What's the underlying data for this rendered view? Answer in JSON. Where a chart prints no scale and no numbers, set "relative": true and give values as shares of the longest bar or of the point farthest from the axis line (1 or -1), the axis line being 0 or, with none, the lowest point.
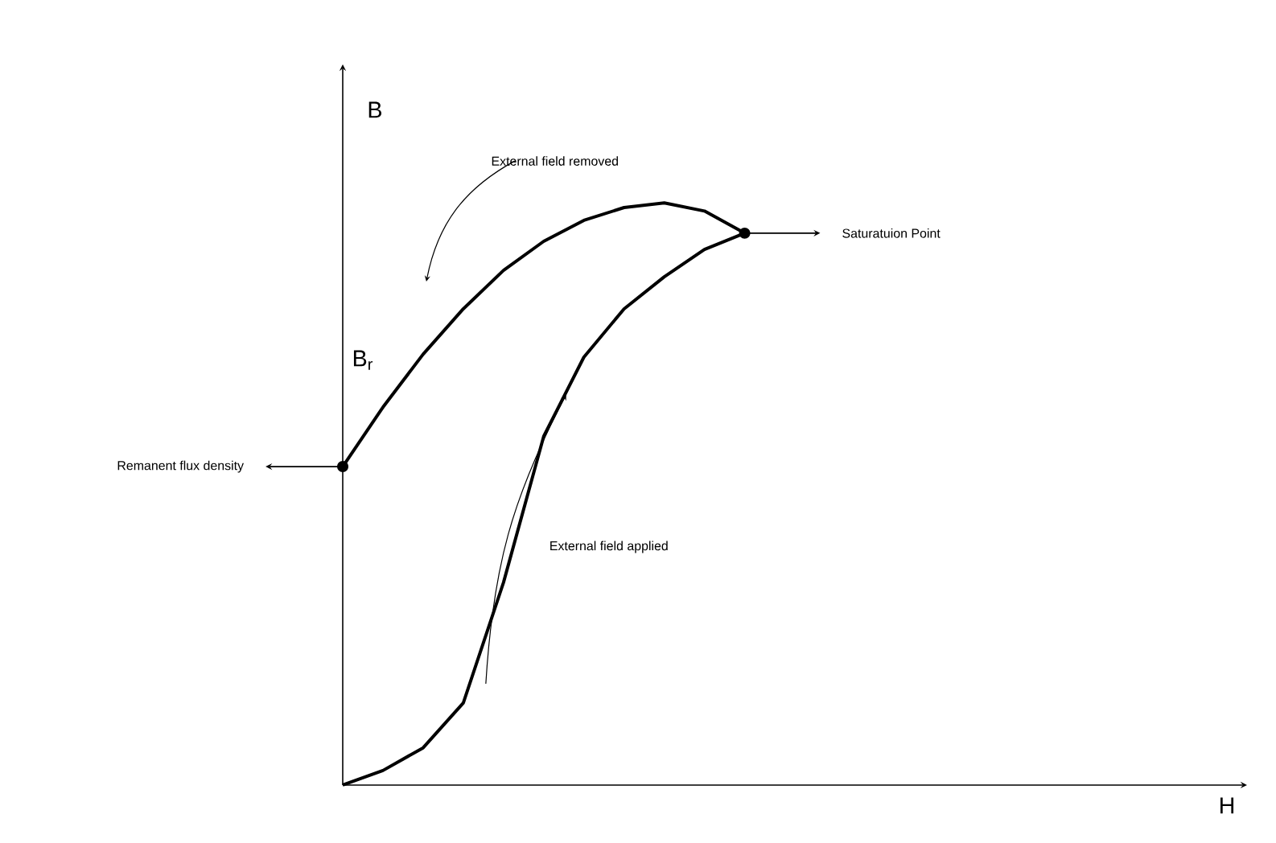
{
  "chart_data": {
    "type": "line",
    "relative": true,
    "ylabel": "B",
    "marker": "none",
    "line_style": "solid",
    "categories": [
      null,
      null,
      null,
      null,
      null,
      null,
      null,
      null,
      null,
      null,
      null
    ],
    "series": [
      {
        "color": "#000000",
        "values": [
          0,
          0.025,
          0.064,
          0.141,
          0.348,
          0.599,
          0.735,
          0.818,
          0.873,
          0.92,
          0.948
        ]
      },
      {
        "color": "#000000",
        "values": [
          0.547,
          0.649,
          0.74,
          0.818,
          0.884,
          0.934,
          0.97,
          0.992,
          1.0,
          0.986,
          0.948
        ]
      }
    ],
    "annotations": [
      "External field removed",
      "Saturatuion Point",
      "Remanent flux density",
      "External field applied",
      "B$_{r}$",
      "H"
    ]
  }
}
